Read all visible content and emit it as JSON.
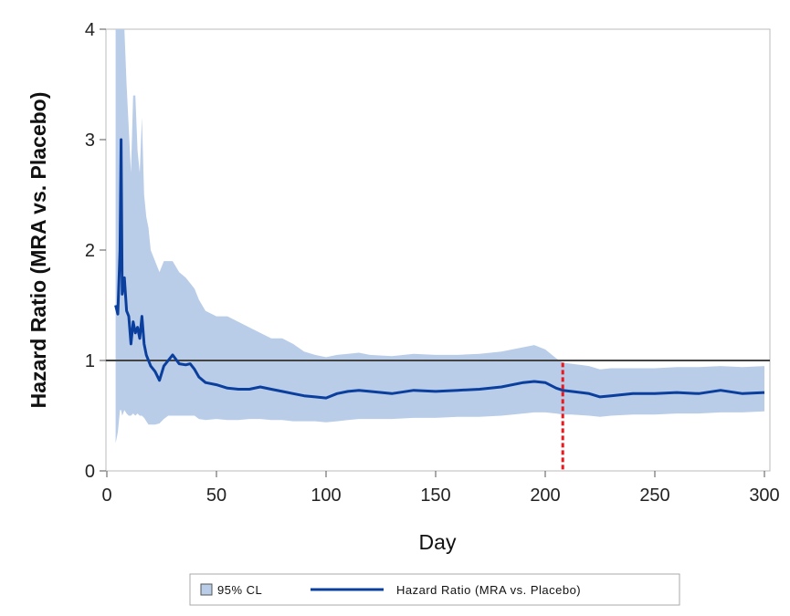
{
  "chart_data": {
    "type": "line",
    "xlabel": "Day",
    "ylabel": "Hazard Ratio (MRA vs. Placebo)",
    "xlim": [
      0,
      300
    ],
    "ylim": [
      0,
      4
    ],
    "xticks": [
      0,
      50,
      100,
      150,
      200,
      250,
      300
    ],
    "yticks": [
      0,
      1,
      2,
      3,
      4
    ],
    "reference_line_y": 1,
    "reference_line_x": 208,
    "colors": {
      "line": "#0b3f9e",
      "band": "#b9cde8",
      "reference": "#444444",
      "vertical_marker": "#e8191f"
    },
    "legend": {
      "placement": "bottom",
      "entries": [
        {
          "label": "95% CL",
          "kind": "band"
        },
        {
          "label": "Hazard Ratio (MRA vs. Placebo)",
          "kind": "line"
        }
      ]
    },
    "series": [
      {
        "name": "Hazard Ratio (MRA vs. Placebo)",
        "x": [
          4,
          5,
          6,
          6.5,
          7,
          8,
          9,
          10,
          11,
          12,
          13,
          14,
          15,
          16,
          17,
          18,
          19,
          20,
          22,
          24,
          26,
          28,
          30,
          33,
          36,
          38,
          40,
          42,
          45,
          50,
          55,
          60,
          65,
          70,
          75,
          80,
          85,
          90,
          95,
          100,
          105,
          110,
          115,
          120,
          130,
          140,
          150,
          160,
          170,
          180,
          190,
          195,
          200,
          205,
          208,
          212,
          220,
          225,
          230,
          240,
          250,
          260,
          270,
          280,
          290,
          300
        ],
        "y": [
          1.5,
          1.42,
          2.0,
          3.0,
          1.6,
          1.75,
          1.45,
          1.4,
          1.15,
          1.35,
          1.25,
          1.3,
          1.2,
          1.4,
          1.15,
          1.05,
          1.0,
          0.95,
          0.9,
          0.82,
          0.95,
          1.0,
          1.05,
          0.97,
          0.96,
          0.97,
          0.92,
          0.85,
          0.8,
          0.78,
          0.75,
          0.74,
          0.74,
          0.76,
          0.74,
          0.72,
          0.7,
          0.68,
          0.67,
          0.66,
          0.7,
          0.72,
          0.73,
          0.72,
          0.7,
          0.73,
          0.72,
          0.73,
          0.74,
          0.76,
          0.8,
          0.81,
          0.8,
          0.75,
          0.73,
          0.72,
          0.7,
          0.67,
          0.68,
          0.7,
          0.7,
          0.71,
          0.7,
          0.73,
          0.7,
          0.71
        ],
        "lower": [
          0.25,
          0.35,
          0.55,
          0.55,
          0.5,
          0.55,
          0.52,
          0.5,
          0.5,
          0.52,
          0.5,
          0.52,
          0.5,
          0.5,
          0.48,
          0.45,
          0.42,
          0.42,
          0.42,
          0.43,
          0.47,
          0.5,
          0.5,
          0.5,
          0.5,
          0.5,
          0.5,
          0.47,
          0.46,
          0.47,
          0.46,
          0.46,
          0.47,
          0.47,
          0.46,
          0.46,
          0.45,
          0.45,
          0.45,
          0.44,
          0.45,
          0.46,
          0.47,
          0.47,
          0.47,
          0.48,
          0.48,
          0.49,
          0.49,
          0.5,
          0.52,
          0.53,
          0.53,
          0.52,
          0.51,
          0.51,
          0.5,
          0.49,
          0.5,
          0.51,
          0.51,
          0.52,
          0.52,
          0.53,
          0.53,
          0.54
        ],
        "upper": [
          4.5,
          4.5,
          4.5,
          4.5,
          4.5,
          4.0,
          3.5,
          3.1,
          2.7,
          3.4,
          3.4,
          2.9,
          2.7,
          3.2,
          2.5,
          2.3,
          2.2,
          2.0,
          1.9,
          1.8,
          1.9,
          1.9,
          1.9,
          1.8,
          1.75,
          1.7,
          1.65,
          1.55,
          1.45,
          1.4,
          1.4,
          1.35,
          1.3,
          1.25,
          1.2,
          1.2,
          1.15,
          1.08,
          1.05,
          1.03,
          1.05,
          1.06,
          1.07,
          1.05,
          1.04,
          1.06,
          1.05,
          1.05,
          1.06,
          1.08,
          1.12,
          1.14,
          1.1,
          1.02,
          0.98,
          0.97,
          0.95,
          0.92,
          0.93,
          0.93,
          0.93,
          0.94,
          0.94,
          0.95,
          0.94,
          0.95
        ]
      }
    ]
  }
}
